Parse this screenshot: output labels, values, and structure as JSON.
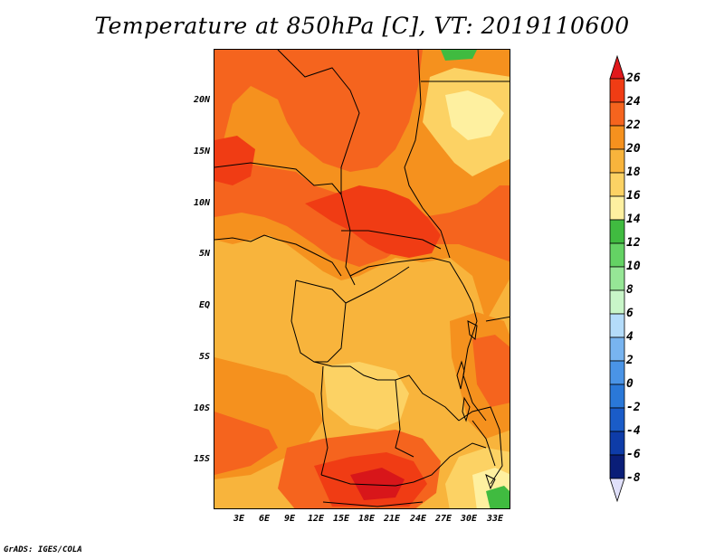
{
  "title": "Temperature at 850hPa [C], VT: 2019110600",
  "credit": "GrADS: IGES/COLA",
  "lat_labels": [
    "20N",
    "15N",
    "10N",
    "5N",
    "EQ",
    "5S",
    "10S",
    "15S"
  ],
  "lon_labels": [
    "3E",
    "6E",
    "9E",
    "12E",
    "15E",
    "18E",
    "21E",
    "24E",
    "27E",
    "30E",
    "33E"
  ],
  "colorbar": {
    "labels": [
      "26",
      "24",
      "22",
      "20",
      "18",
      "16",
      "14",
      "12",
      "10",
      "8",
      "6",
      "4",
      "2",
      "0",
      "-2",
      "-4",
      "-6",
      "-8"
    ],
    "colors": [
      "#e0181c",
      "#f03c14",
      "#f5641e",
      "#f5911e",
      "#f8b43c",
      "#fcd264",
      "#fef0a0",
      "#40bb40",
      "#64d264",
      "#96e696",
      "#c8f5c8",
      "#b4dcfa",
      "#78b4f0",
      "#4a94e6",
      "#2a78d8",
      "#1a5cc8",
      "#0e3ca8",
      "#0a1e78",
      "#e0e0fa"
    ],
    "top_cap_color": "#e0181c",
    "bottom_cap_color": "#e0e0fa"
  },
  "colors": {
    "map_base": "#f8b43c",
    "warm_20_22": "#f5911e",
    "warm_22_24": "#f5641e",
    "warm_24_26": "#f03c14",
    "hot": "#d8161a",
    "cool_16_18": "#fcd264",
    "cool_14_16": "#fef0a0",
    "green": "#40bb40"
  }
}
